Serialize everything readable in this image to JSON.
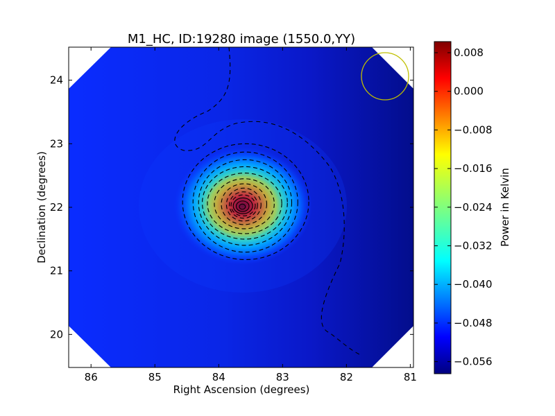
{
  "chart_data": {
    "type": "heatmap",
    "title": "M1_HC, ID:19280 image (1550.0,YY)",
    "xlabel": "Right Ascension (degrees)",
    "ylabel": "Declination (degrees)",
    "colorbar_label": "Power in Kelvin",
    "xlim": [
      86.35,
      80.95
    ],
    "ylim": [
      19.48,
      24.52
    ],
    "x_ticks": [
      86,
      85,
      84,
      83,
      82,
      81
    ],
    "x_tick_labels": [
      "86",
      "85",
      "84",
      "83",
      "82",
      "81"
    ],
    "y_ticks": [
      20,
      21,
      22,
      23,
      24
    ],
    "y_tick_labels": [
      "20",
      "21",
      "22",
      "23",
      "24"
    ],
    "colorbar_range": [
      -0.0585,
      0.0103
    ],
    "colorbar_ticks": [
      0.008,
      0.0,
      -0.008,
      -0.016,
      -0.024,
      -0.032,
      -0.04,
      -0.048,
      -0.056
    ],
    "colorbar_tick_labels": [
      "0.008",
      "0.000",
      "−0.008",
      "−0.016",
      "−0.024",
      "−0.032",
      "−0.040",
      "−0.048",
      "−0.056"
    ],
    "colormap": "jet",
    "peak": {
      "ra": 83.63,
      "dec": 22.01,
      "value": 0.009
    },
    "background_value": -0.052,
    "contours": "dashed black contours around central source",
    "beam_circle": {
      "ra": 81.35,
      "dec": 24.08,
      "radius_deg": 0.37,
      "color": "#bfbf00"
    },
    "colors": {
      "frame": "#000000",
      "nodata": "#ffffff"
    }
  }
}
